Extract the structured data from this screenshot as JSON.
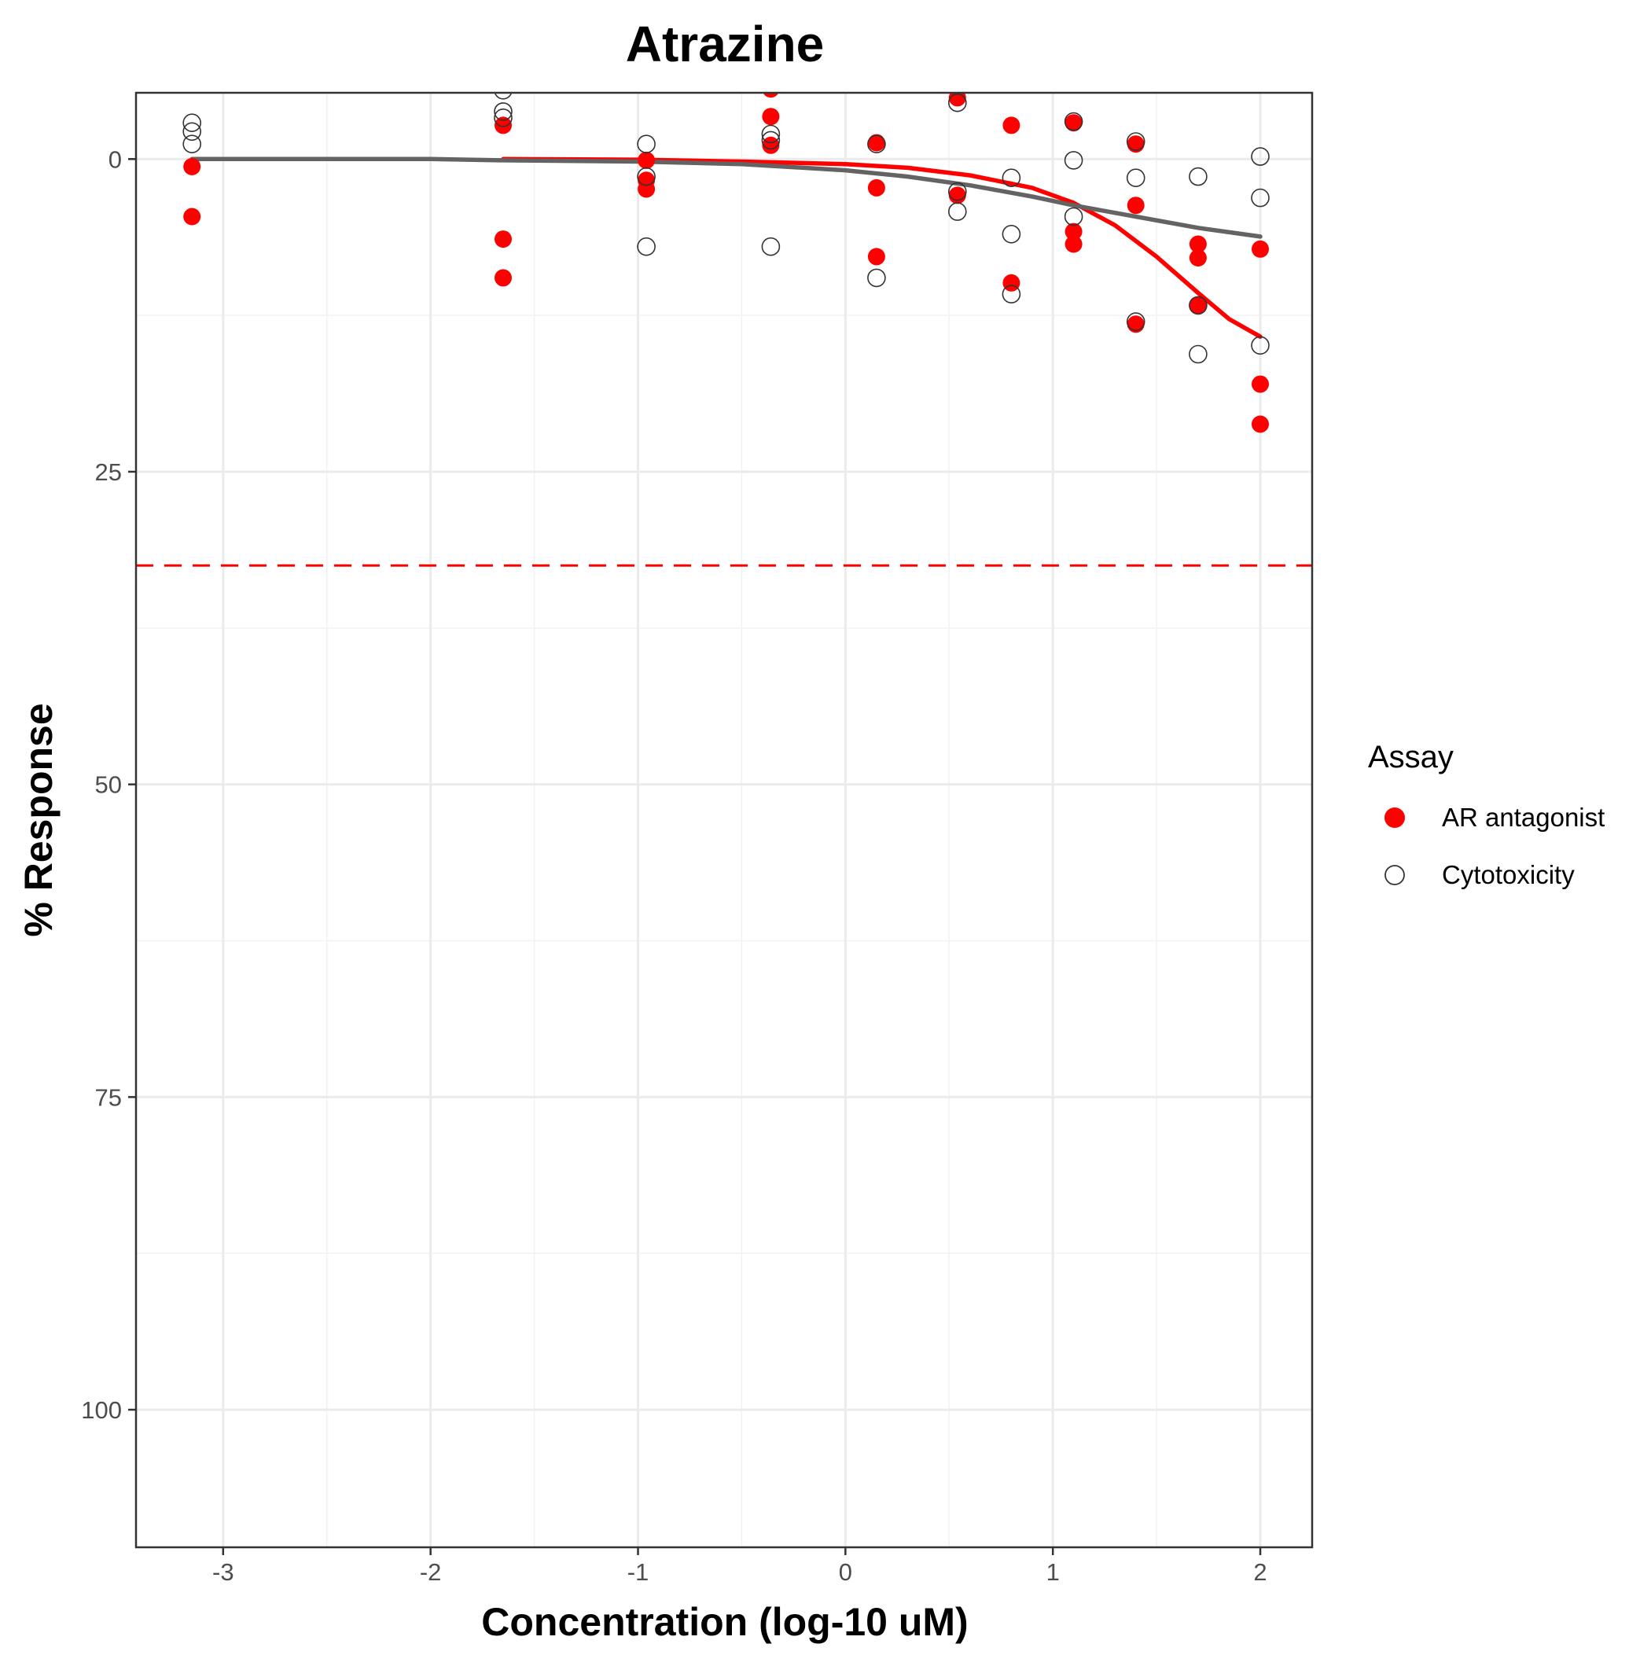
{
  "chart_data": {
    "type": "scatter",
    "title": "Atrazine",
    "xlabel": "Concentration (log-10 uM)",
    "ylabel": "% Response",
    "xlim": [
      -3.42,
      2.25
    ],
    "ylim": [
      -5.3,
      111.0
    ],
    "y_reversed": true,
    "x_ticks": [
      -3,
      -2,
      -1,
      0,
      1,
      2
    ],
    "x_tick_labels": [
      "-3",
      "-2",
      "-1",
      "0",
      "1",
      "2"
    ],
    "y_ticks": [
      0,
      25,
      50,
      75,
      100
    ],
    "y_tick_labels": [
      "0",
      "25",
      "50",
      "75",
      "100"
    ],
    "grid": true,
    "legend": {
      "title": "Assay",
      "placement": "right",
      "entries": [
        "AR antagonist",
        "Cytotoxicity"
      ]
    },
    "threshold_line": {
      "y": 32.5,
      "color": "#ff0000",
      "style": "dashed"
    },
    "series": [
      {
        "name": "AR antagonist",
        "marker": "filled-circle",
        "color": "#ff0000",
        "points": [
          [
            -3.15,
            0.6
          ],
          [
            -3.15,
            4.6
          ],
          [
            -1.65,
            -2.7
          ],
          [
            -1.65,
            6.4
          ],
          [
            -1.65,
            9.5
          ],
          [
            -0.96,
            0.1
          ],
          [
            -0.96,
            1.7
          ],
          [
            -0.96,
            2.4
          ],
          [
            -0.36,
            -5.6
          ],
          [
            -0.36,
            -3.4
          ],
          [
            -0.36,
            -1.1
          ],
          [
            0.15,
            -1.3
          ],
          [
            0.15,
            2.3
          ],
          [
            0.15,
            7.8
          ],
          [
            0.54,
            -4.9
          ],
          [
            0.54,
            2.9
          ],
          [
            0.8,
            -2.7
          ],
          [
            0.8,
            9.9
          ],
          [
            1.1,
            -2.9
          ],
          [
            1.1,
            5.8
          ],
          [
            1.1,
            6.8
          ],
          [
            1.4,
            -1.2
          ],
          [
            1.4,
            3.7
          ],
          [
            1.4,
            13.2
          ],
          [
            1.7,
            6.8
          ],
          [
            1.7,
            7.9
          ],
          [
            1.7,
            11.7
          ],
          [
            2.0,
            7.2
          ],
          [
            2.0,
            18.0
          ],
          [
            2.0,
            21.2
          ]
        ]
      },
      {
        "name": "Cytotoxicity",
        "marker": "open-circle",
        "color": "#333333",
        "points": [
          [
            -3.15,
            -2.9
          ],
          [
            -3.15,
            -2.2
          ],
          [
            -3.15,
            -1.2
          ],
          [
            -1.65,
            -5.5
          ],
          [
            -1.65,
            -3.8
          ],
          [
            -1.65,
            -3.3
          ],
          [
            -0.96,
            -1.2
          ],
          [
            -0.96,
            1.4
          ],
          [
            -0.96,
            7.0
          ],
          [
            -0.36,
            -2.0
          ],
          [
            -0.36,
            -1.5
          ],
          [
            -0.36,
            7.0
          ],
          [
            0.15,
            -1.2
          ],
          [
            0.15,
            9.5
          ],
          [
            0.54,
            -4.5
          ],
          [
            0.54,
            2.6
          ],
          [
            0.54,
            4.2
          ],
          [
            0.8,
            1.5
          ],
          [
            0.8,
            6.0
          ],
          [
            0.8,
            10.8
          ],
          [
            1.1,
            -3.0
          ],
          [
            1.1,
            0.1
          ],
          [
            1.1,
            4.6
          ],
          [
            1.4,
            -1.4
          ],
          [
            1.4,
            1.5
          ],
          [
            1.4,
            13.0
          ],
          [
            1.7,
            1.4
          ],
          [
            1.7,
            11.7
          ],
          [
            1.7,
            15.6
          ],
          [
            2.0,
            -0.2
          ],
          [
            2.0,
            3.1
          ],
          [
            2.0,
            14.9
          ]
        ]
      }
    ],
    "curves": [
      {
        "series": "AR antagonist",
        "color": "#ff0000",
        "points": [
          [
            -1.65,
            0.0
          ],
          [
            -1.0,
            0.05
          ],
          [
            -0.5,
            0.2
          ],
          [
            0.0,
            0.4
          ],
          [
            0.3,
            0.7
          ],
          [
            0.6,
            1.3
          ],
          [
            0.9,
            2.3
          ],
          [
            1.1,
            3.5
          ],
          [
            1.3,
            5.3
          ],
          [
            1.5,
            7.8
          ],
          [
            1.7,
            10.7
          ],
          [
            1.85,
            12.8
          ],
          [
            2.0,
            14.2
          ]
        ]
      },
      {
        "series": "Cytotoxicity",
        "color": "#636363",
        "points": [
          [
            -3.15,
            0.0
          ],
          [
            -2.0,
            0.0
          ],
          [
            -1.65,
            0.1
          ],
          [
            -1.0,
            0.2
          ],
          [
            -0.5,
            0.4
          ],
          [
            0.0,
            0.9
          ],
          [
            0.3,
            1.4
          ],
          [
            0.6,
            2.1
          ],
          [
            0.9,
            3.0
          ],
          [
            1.1,
            3.7
          ],
          [
            1.4,
            4.6
          ],
          [
            1.7,
            5.5
          ],
          [
            2.0,
            6.2
          ]
        ]
      }
    ]
  }
}
